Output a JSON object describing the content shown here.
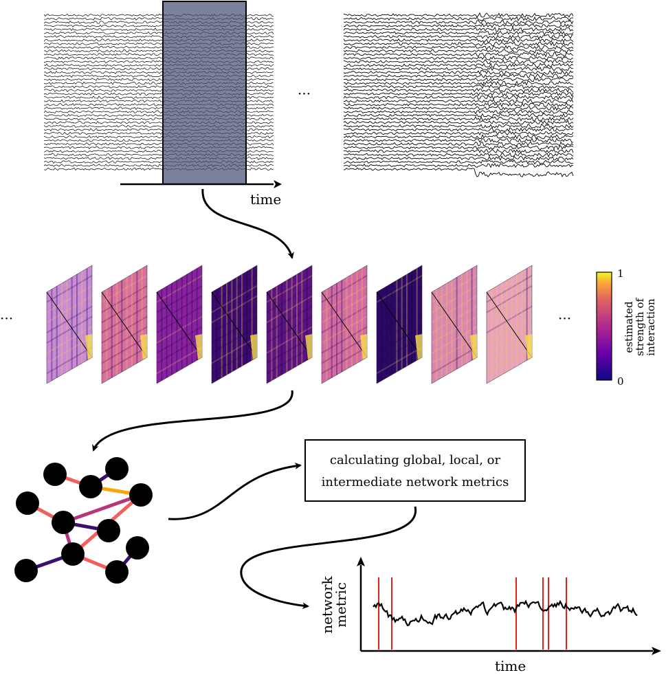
{
  "time_label_top": "time",
  "ellipsis": "···",
  "colorbar": {
    "label_line1": "estimated",
    "label_line2": "strength of",
    "label_line3": "interaction",
    "max_label": "1",
    "min_label": "0"
  },
  "metrics_box": {
    "line1": "calculating global, local, or",
    "line2": "intermediate network metrics"
  },
  "plot": {
    "ylabel_line1": "network",
    "ylabel_line2": "metric",
    "xlabel": "time"
  },
  "colors": {
    "window": "#4a5076",
    "event_line": "#e3201b",
    "edge_dark": "#3b0f70",
    "edge_magenta": "#b63679",
    "edge_orange": "#f1605d",
    "edge_gold": "#fca50a"
  }
}
